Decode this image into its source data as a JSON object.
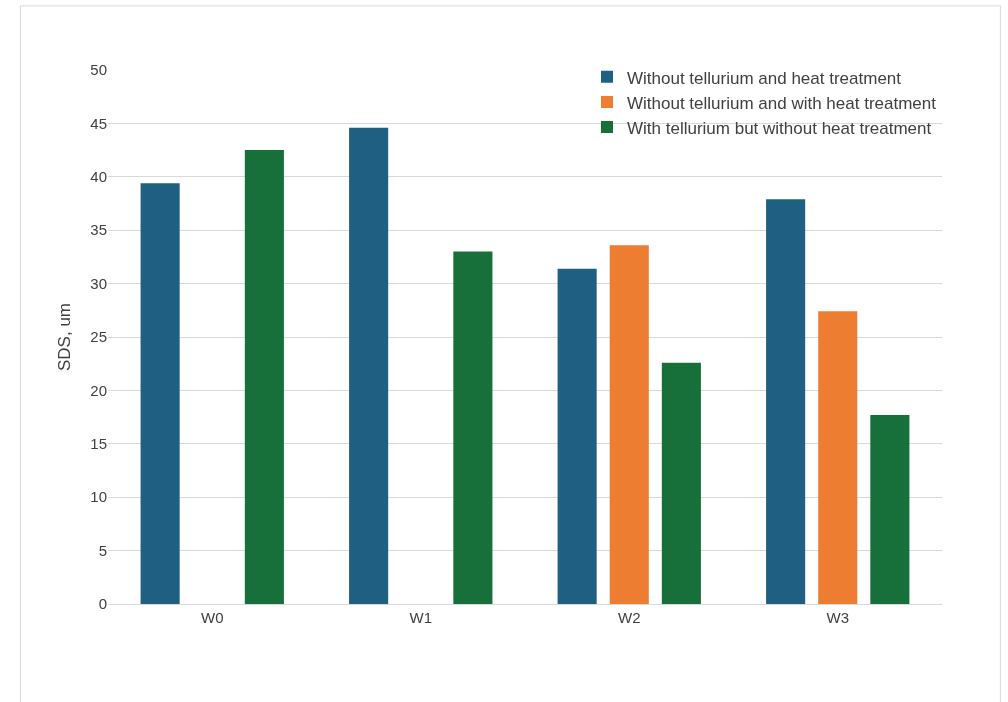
{
  "chart_data": {
    "type": "bar",
    "ylabel": "SDS, um",
    "categories": [
      "W0",
      "W1",
      "W2",
      "W3"
    ],
    "series": [
      {
        "name": "Without tellurium and heat treatment",
        "color": "#1f5f82",
        "values": [
          39.4,
          44.6,
          31.4,
          37.9
        ]
      },
      {
        "name": "Without tellurium and with heat treatment",
        "color": "#ed7d31",
        "values": [
          null,
          null,
          33.6,
          27.4
        ]
      },
      {
        "name": "With tellurium but without heat treatment",
        "color": "#17703a",
        "values": [
          42.5,
          33.0,
          22.6,
          17.7
        ]
      }
    ],
    "ylim": [
      0,
      50
    ],
    "yticks": [
      0,
      5,
      10,
      15,
      20,
      25,
      30,
      35,
      40,
      45,
      50
    ],
    "grid": "y",
    "legend": "top right"
  }
}
